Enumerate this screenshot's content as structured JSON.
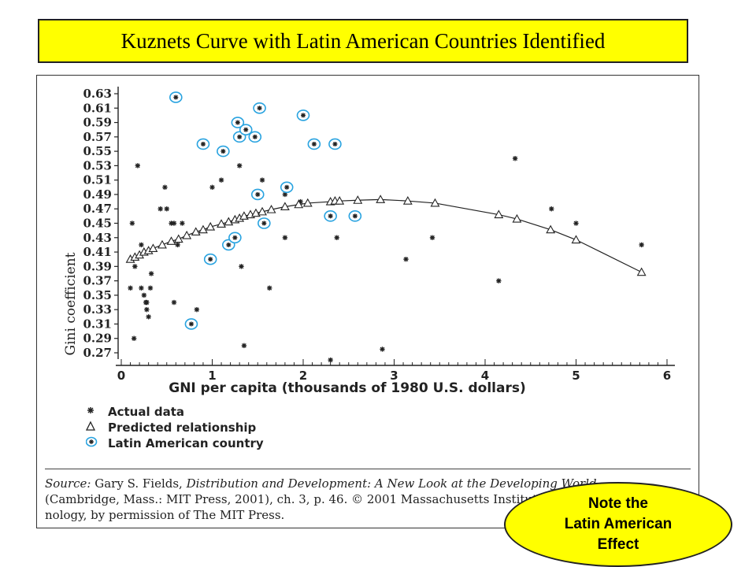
{
  "slide_title": "Kuznets Curve with Latin American Countries Identified",
  "callout": {
    "line1": "Note the",
    "line2": "Latin American",
    "line3": "Effect"
  },
  "source": {
    "label": "Source:",
    "author": " Gary S. Fields, ",
    "book": "Distribution and Development: A New Look at the Developing World",
    "line2": "(Cambridge, Mass.: MIT Press, 2001), ch. 3, p. 46. © 2001 Massachusetts Institute of Tech-",
    "line3": "nology, by permission of The MIT Press."
  },
  "legend": {
    "actual": "Actual data",
    "predicted": "Predicted relationship",
    "latin": "Latin American country"
  },
  "colors": {
    "title_bg": "#ffff00",
    "latin_circle": "#29a3e0",
    "marks": "#222222"
  },
  "chart_data": {
    "type": "scatter",
    "xlabel": "GNI per capita (thousands of 1980 U.S. dollars)",
    "ylabel": "Gini coefficient",
    "xlim": [
      0,
      6
    ],
    "ylim": [
      0.26,
      0.64
    ],
    "x_ticks": [
      0,
      1,
      2,
      3,
      4,
      5,
      6
    ],
    "y_ticks": [
      0.27,
      0.29,
      0.31,
      0.33,
      0.35,
      0.37,
      0.39,
      0.41,
      0.43,
      0.45,
      0.47,
      0.49,
      0.51,
      0.53,
      0.55,
      0.57,
      0.59,
      0.61,
      0.63
    ],
    "legend_position": "bottom-left",
    "grid": false,
    "series": [
      {
        "name": "Actual data",
        "marker": "asterisk",
        "points": [
          [
            0.1,
            0.36
          ],
          [
            0.12,
            0.45
          ],
          [
            0.14,
            0.29
          ],
          [
            0.15,
            0.39
          ],
          [
            0.18,
            0.53
          ],
          [
            0.22,
            0.42
          ],
          [
            0.22,
            0.36
          ],
          [
            0.25,
            0.35
          ],
          [
            0.27,
            0.34
          ],
          [
            0.28,
            0.34
          ],
          [
            0.28,
            0.33
          ],
          [
            0.3,
            0.32
          ],
          [
            0.32,
            0.36
          ],
          [
            0.33,
            0.38
          ],
          [
            0.43,
            0.47
          ],
          [
            0.48,
            0.5
          ],
          [
            0.5,
            0.47
          ],
          [
            0.55,
            0.45
          ],
          [
            0.58,
            0.45
          ],
          [
            0.58,
            0.34
          ],
          [
            0.62,
            0.42
          ],
          [
            0.67,
            0.45
          ],
          [
            0.83,
            0.33
          ],
          [
            1.0,
            0.5
          ],
          [
            1.1,
            0.51
          ],
          [
            1.3,
            0.53
          ],
          [
            1.32,
            0.39
          ],
          [
            1.35,
            0.28
          ],
          [
            1.55,
            0.51
          ],
          [
            1.63,
            0.36
          ],
          [
            1.8,
            0.43
          ],
          [
            1.8,
            0.49
          ],
          [
            1.97,
            0.48
          ],
          [
            2.3,
            0.26
          ],
          [
            2.37,
            0.43
          ],
          [
            2.87,
            0.275
          ],
          [
            3.13,
            0.4
          ],
          [
            3.42,
            0.43
          ],
          [
            4.15,
            0.37
          ],
          [
            4.33,
            0.54
          ],
          [
            4.73,
            0.47
          ],
          [
            5.0,
            0.45
          ],
          [
            5.72,
            0.42
          ]
        ]
      },
      {
        "name": "Predicted relationship",
        "marker": "triangle",
        "points": [
          [
            0.1,
            0.4
          ],
          [
            0.15,
            0.403
          ],
          [
            0.2,
            0.406
          ],
          [
            0.25,
            0.41
          ],
          [
            0.3,
            0.412
          ],
          [
            0.35,
            0.415
          ],
          [
            0.45,
            0.42
          ],
          [
            0.55,
            0.425
          ],
          [
            0.63,
            0.428
          ],
          [
            0.72,
            0.433
          ],
          [
            0.82,
            0.438
          ],
          [
            0.9,
            0.441
          ],
          [
            0.98,
            0.445
          ],
          [
            1.1,
            0.449
          ],
          [
            1.18,
            0.452
          ],
          [
            1.25,
            0.455
          ],
          [
            1.3,
            0.457
          ],
          [
            1.35,
            0.46
          ],
          [
            1.42,
            0.462
          ],
          [
            1.48,
            0.464
          ],
          [
            1.55,
            0.466
          ],
          [
            1.65,
            0.469
          ],
          [
            1.8,
            0.473
          ],
          [
            1.95,
            0.476
          ],
          [
            2.05,
            0.478
          ],
          [
            2.3,
            0.48
          ],
          [
            2.35,
            0.481
          ],
          [
            2.4,
            0.481
          ],
          [
            2.6,
            0.482
          ],
          [
            2.85,
            0.483
          ],
          [
            3.15,
            0.481
          ],
          [
            3.45,
            0.478
          ],
          [
            4.15,
            0.462
          ],
          [
            4.35,
            0.456
          ],
          [
            4.72,
            0.441
          ],
          [
            5.0,
            0.427
          ],
          [
            5.72,
            0.382
          ]
        ]
      },
      {
        "name": "Latin American country",
        "marker": "circled-asterisk",
        "points": [
          [
            0.6,
            0.625
          ],
          [
            0.77,
            0.31
          ],
          [
            0.9,
            0.56
          ],
          [
            0.98,
            0.4
          ],
          [
            1.12,
            0.55
          ],
          [
            1.18,
            0.42
          ],
          [
            1.25,
            0.43
          ],
          [
            1.28,
            0.59
          ],
          [
            1.3,
            0.57
          ],
          [
            1.37,
            0.58
          ],
          [
            1.47,
            0.57
          ],
          [
            1.52,
            0.61
          ],
          [
            1.5,
            0.49
          ],
          [
            1.57,
            0.45
          ],
          [
            1.82,
            0.5
          ],
          [
            2.0,
            0.6
          ],
          [
            2.12,
            0.56
          ],
          [
            2.3,
            0.46
          ],
          [
            2.35,
            0.56
          ],
          [
            2.57,
            0.46
          ]
        ]
      }
    ]
  }
}
